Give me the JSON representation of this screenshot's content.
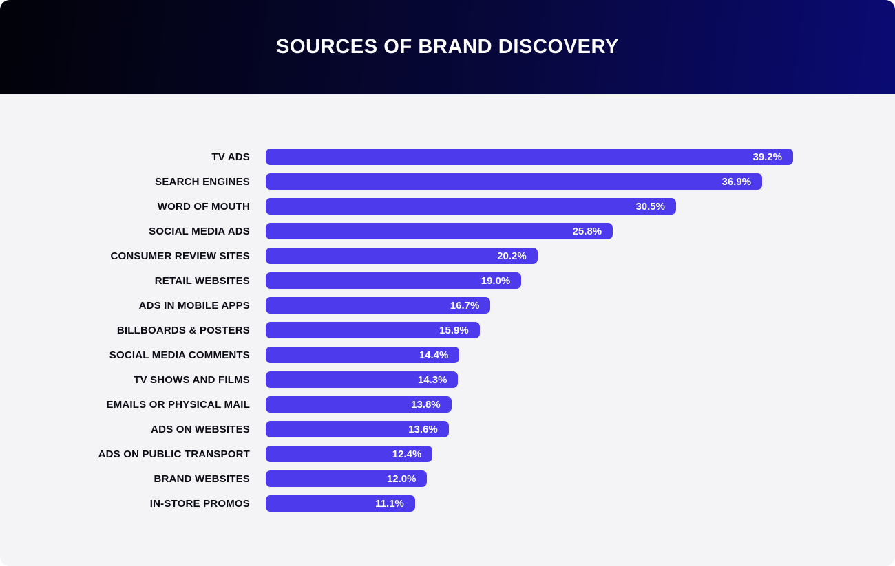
{
  "header": {
    "title": "SOURCES OF BRAND DISCOVERY"
  },
  "colors": {
    "bar": "#4c3aec",
    "header_gradient_left": "#020209",
    "header_gradient_right": "#0a0a74",
    "content_bg": "#f4f4f6",
    "title_text": "#ffffff",
    "label_text": "#0b0b16",
    "value_text": "#ffffff"
  },
  "chart_data": {
    "type": "bar",
    "orientation": "horizontal",
    "title": "SOURCES OF BRAND DISCOVERY",
    "xlabel": "",
    "ylabel": "",
    "xlim": [
      0,
      39.2
    ],
    "grid": false,
    "legend": false,
    "data_labels_position": "inside-end",
    "categories": [
      "TV ADS",
      "SEARCH ENGINES",
      "WORD OF MOUTH",
      "SOCIAL MEDIA ADS",
      "CONSUMER REVIEW SITES",
      "RETAIL WEBSITES",
      "ADS IN MOBILE APPS",
      "BILLBOARDS & POSTERS",
      "SOCIAL MEDIA COMMENTS",
      "TV SHOWS AND FILMS",
      "EMAILS OR PHYSICAL MAIL",
      "ADS ON WEBSITES",
      "ADS ON PUBLIC TRANSPORT",
      "BRAND WEBSITES",
      "IN-STORE PROMOS"
    ],
    "values": [
      39.2,
      36.9,
      30.5,
      25.8,
      20.2,
      19.0,
      16.7,
      15.9,
      14.4,
      14.3,
      13.8,
      13.6,
      12.4,
      12.0,
      11.1
    ],
    "value_labels": [
      "39.2%",
      "36.9%",
      "30.5%",
      "25.8%",
      "20.2%",
      "19.0%",
      "16.7%",
      "15.9%",
      "14.4%",
      "14.3%",
      "13.8%",
      "13.6%",
      "12.4%",
      "12.0%",
      "11.1%"
    ]
  }
}
